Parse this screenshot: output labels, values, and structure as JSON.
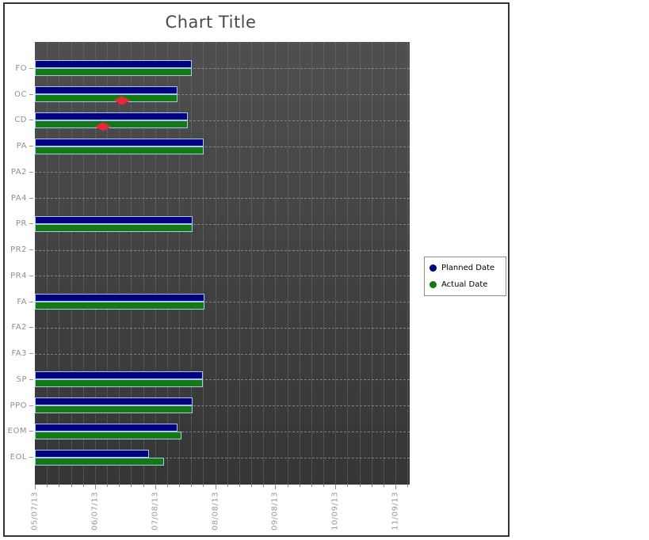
{
  "chart_data": {
    "type": "bar",
    "orientation": "horizontal",
    "title": "Chart Title",
    "categories": [
      "FO",
      "OC",
      "CD",
      "PA",
      "PA2",
      "PA4",
      "PR",
      "PR2",
      "PR4",
      "FA",
      "FA2",
      "FA3",
      "SP",
      "PPO",
      "EOM",
      "EOL"
    ],
    "x_axis": {
      "kind": "time",
      "tick_labels": [
        "05/07/13",
        "06/07/13",
        "07/08/13",
        "08/08/13",
        "09/08/13",
        "10/09/13",
        "11/09/13"
      ],
      "tick_days": [
        0,
        31,
        62,
        93,
        124,
        155,
        186
      ],
      "minor_step_days": 6.2,
      "max_days": 193.3,
      "tick_label_rotation_deg": 90
    },
    "series": [
      {
        "name": "Planned Date",
        "color": "#000080",
        "values_days": [
          81,
          73.5,
          79,
          87,
          null,
          null,
          81.5,
          null,
          null,
          87.5,
          null,
          null,
          86.5,
          81.5,
          73.5,
          59
        ]
      },
      {
        "name": "Actual Date",
        "color": "#147814",
        "values_days": [
          81,
          73.5,
          79,
          87,
          null,
          null,
          81.5,
          null,
          null,
          87.5,
          null,
          null,
          86.5,
          81.5,
          75.5,
          66.5
        ]
      }
    ],
    "markers": [
      {
        "category": "OC",
        "day": 45,
        "shape": "diamond",
        "color": "#e6283c"
      },
      {
        "category": "CD",
        "day": 35,
        "shape": "diamond",
        "color": "#e6283c"
      }
    ],
    "legend": {
      "position": "right",
      "items": [
        {
          "label": "Planned Date",
          "color": "#000080"
        },
        {
          "label": "Actual Date",
          "color": "#147814"
        }
      ]
    },
    "grid": {
      "vertical": "dotted",
      "horizontal_row_lines": "dashed"
    },
    "colors": {
      "plot_background_top": "#4f4f4f",
      "plot_background_bottom": "#353535",
      "bar_border": "#a6caec",
      "axis_label": "#9a9a9a",
      "category_label": "#8f8f8f",
      "title": "#4a4a4a",
      "frame_border": "#333333"
    }
  }
}
